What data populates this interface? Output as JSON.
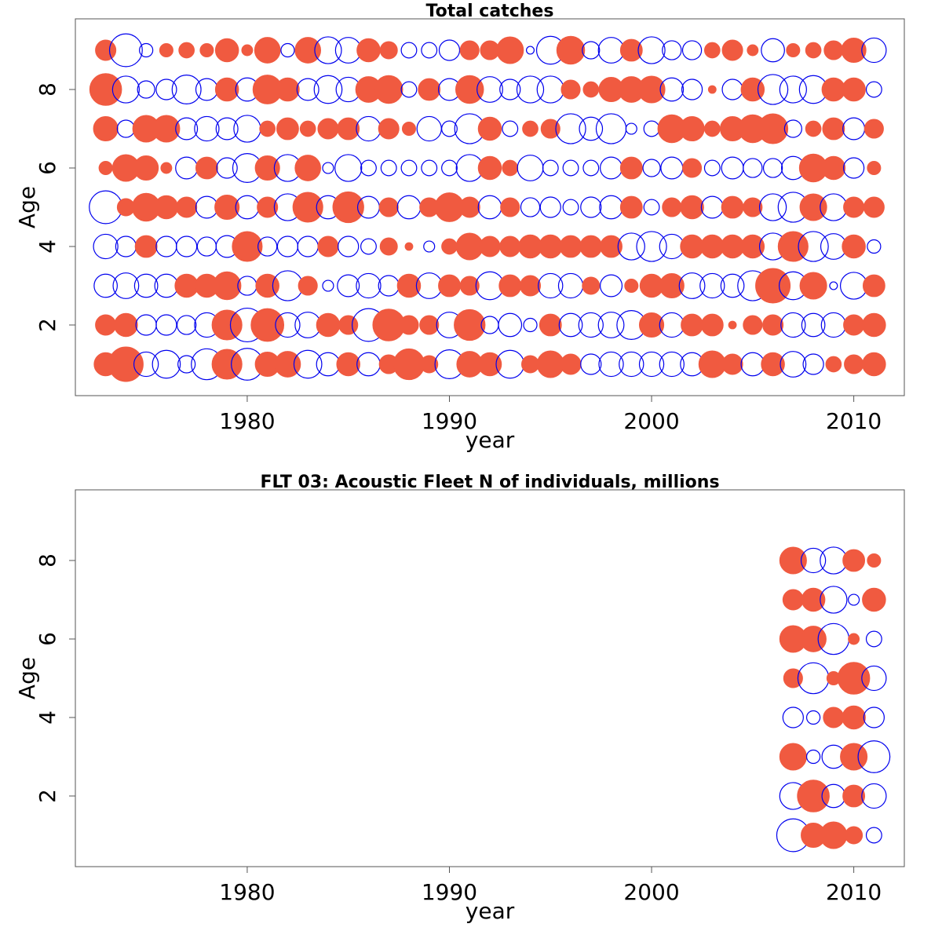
{
  "colors": {
    "positive": "#f05a40",
    "negative": "#0000ee",
    "frame": "#555555"
  },
  "chart_data": [
    {
      "type": "scatter",
      "title": "Total catches",
      "xlabel": "year",
      "ylabel": "Age",
      "xlim": [
        1971.5,
        2012.5
      ],
      "ylim": [
        0.2,
        9.8
      ],
      "xticks": [
        1980,
        1990,
        2000,
        2010
      ],
      "yticks": [
        2,
        4,
        6,
        8
      ],
      "grid": false,
      "years": [
        1973,
        1974,
        1975,
        1976,
        1977,
        1978,
        1979,
        1980,
        1981,
        1982,
        1983,
        1984,
        1985,
        1986,
        1987,
        1988,
        1989,
        1990,
        1991,
        1992,
        1993,
        1994,
        1995,
        1996,
        1997,
        1998,
        1999,
        2000,
        2001,
        2002,
        2003,
        2004,
        2005,
        2006,
        2007,
        2008,
        2009,
        2010,
        2011
      ],
      "ages": [
        1,
        2,
        3,
        4,
        5,
        6,
        7,
        8,
        9
      ],
      "residuals": {
        "1": [
          0.45,
          1.0,
          -0.5,
          -0.65,
          -0.25,
          -0.8,
          0.75,
          -0.85,
          0.5,
          0.55,
          -0.65,
          -0.45,
          0.45,
          -0.45,
          0.3,
          0.8,
          0.25,
          -0.7,
          0.55,
          0.45,
          -0.65,
          0.25,
          0.6,
          0.35,
          -0.35,
          -0.5,
          -0.5,
          -0.5,
          -0.5,
          -0.45,
          0.6,
          0.35,
          -0.45,
          0.45,
          -0.55,
          -0.35,
          0.2,
          0.3,
          0.45
        ],
        "2": [
          0.35,
          0.45,
          -0.35,
          -0.35,
          -0.3,
          -0.5,
          0.75,
          -0.95,
          0.9,
          -0.5,
          -0.55,
          0.45,
          0.3,
          -0.9,
          0.85,
          0.3,
          0.3,
          -0.55,
          0.8,
          -0.25,
          -0.45,
          -0.15,
          0.4,
          -0.45,
          -0.5,
          -0.55,
          -0.7,
          0.5,
          -0.5,
          0.4,
          0.4,
          0.05,
          0.3,
          0.35,
          -0.5,
          -0.45,
          -0.5,
          0.35,
          0.45
        ],
        "3": [
          -0.45,
          -0.55,
          -0.45,
          -0.45,
          0.45,
          0.45,
          0.65,
          -0.3,
          0.45,
          -0.75,
          0.3,
          -0.1,
          -0.4,
          -0.5,
          -0.35,
          0.45,
          -0.55,
          0.4,
          0.3,
          -0.65,
          0.4,
          0.35,
          -0.5,
          -0.5,
          0.25,
          -0.4,
          0.15,
          0.45,
          0.5,
          -0.55,
          -0.5,
          -0.45,
          -0.75,
          1.0,
          -0.65,
          0.6,
          -0.05,
          -0.6,
          0.4
        ],
        "4": [
          -0.5,
          -0.35,
          0.4,
          -0.35,
          -0.35,
          -0.3,
          -0.4,
          0.75,
          -0.3,
          -0.35,
          -0.35,
          0.35,
          -0.35,
          -0.2,
          0.25,
          0.05,
          -0.1,
          0.2,
          0.6,
          0.35,
          0.35,
          0.45,
          0.45,
          0.4,
          0.4,
          0.4,
          -0.6,
          -0.75,
          -0.5,
          0.45,
          0.45,
          0.45,
          0.45,
          -0.6,
          0.75,
          -0.75,
          -0.55,
          0.45,
          -0.15
        ],
        "5": [
          -0.9,
          0.25,
          0.65,
          0.45,
          0.35,
          -0.4,
          0.5,
          -0.45,
          0.35,
          -0.6,
          0.75,
          -0.45,
          0.8,
          -0.4,
          0.3,
          -0.45,
          0.3,
          0.7,
          0.35,
          -0.45,
          0.3,
          -0.3,
          -0.35,
          -0.2,
          -0.35,
          -0.45,
          0.4,
          -0.2,
          0.3,
          0.45,
          -0.4,
          0.4,
          0.3,
          -0.6,
          -0.75,
          0.6,
          -0.6,
          0.35,
          0.35
        ],
        "6": [
          0.15,
          0.6,
          0.5,
          0.1,
          -0.4,
          0.4,
          -0.35,
          -0.7,
          0.5,
          -0.6,
          0.55,
          -0.1,
          -0.6,
          -0.2,
          -0.2,
          -0.2,
          -0.2,
          -0.2,
          -0.6,
          0.45,
          0.2,
          -0.55,
          -0.2,
          -0.2,
          -0.2,
          -0.4,
          0.4,
          -0.25,
          -0.4,
          0.3,
          -0.2,
          -0.4,
          -0.3,
          -0.3,
          -0.45,
          0.65,
          0.45,
          -0.35,
          0.15
        ],
        "7": [
          0.5,
          -0.25,
          0.6,
          0.6,
          -0.4,
          -0.5,
          -0.4,
          -0.6,
          0.2,
          0.4,
          0.2,
          0.35,
          0.4,
          -0.5,
          0.35,
          0.15,
          -0.5,
          -0.2,
          -0.75,
          0.45,
          -0.2,
          0.2,
          0.3,
          -0.75,
          -0.45,
          -0.75,
          -0.1,
          -0.2,
          0.65,
          0.5,
          0.2,
          0.5,
          0.65,
          0.75,
          -0.25,
          0.2,
          0.4,
          -0.4,
          0.3
        ],
        "8": [
          0.85,
          -0.6,
          -0.25,
          -0.35,
          -0.7,
          -0.4,
          0.45,
          -0.45,
          0.7,
          0.45,
          -0.4,
          -0.65,
          -0.5,
          0.55,
          0.65,
          -0.2,
          0.4,
          -0.4,
          0.65,
          -0.55,
          -0.35,
          -0.6,
          -0.6,
          0.3,
          0.2,
          0.5,
          0.55,
          0.6,
          -0.45,
          -0.35,
          0.05,
          -0.35,
          0.45,
          -0.75,
          -0.6,
          -0.65,
          0.45,
          0.45,
          -0.2
        ],
        "9": [
          0.35,
          -0.9,
          -0.15,
          0.15,
          0.2,
          0.15,
          0.45,
          0.1,
          0.55,
          -0.15,
          0.55,
          -0.6,
          -0.55,
          0.45,
          0.25,
          -0.2,
          -0.2,
          -0.35,
          0.3,
          0.3,
          0.6,
          -0.05,
          -0.65,
          0.65,
          -0.25,
          -0.55,
          0.4,
          -0.6,
          -0.3,
          -0.3,
          0.2,
          0.35,
          0.1,
          -0.45,
          0.15,
          0.2,
          0.3,
          0.5,
          -0.5
        ]
      }
    },
    {
      "type": "scatter",
      "title": "FLT 03: Acoustic Fleet  N of individuals, millions",
      "xlabel": "year",
      "ylabel": "Age",
      "xlim": [
        1971.5,
        2012.5
      ],
      "ylim": [
        0.2,
        9.8
      ],
      "xticks": [
        1980,
        1990,
        2000,
        2010
      ],
      "yticks": [
        2,
        4,
        6,
        8
      ],
      "grid": false,
      "years": [
        2007,
        2008,
        2009,
        2010,
        2011
      ],
      "ages": [
        1,
        2,
        3,
        4,
        5,
        6,
        7,
        8
      ],
      "residuals": {
        "1": [
          -0.9,
          0.5,
          0.6,
          0.25,
          -0.2
        ],
        "2": [
          -0.6,
          0.85,
          -0.45,
          0.4,
          -0.5
        ],
        "3": [
          0.6,
          -0.15,
          -0.45,
          0.6,
          -0.85
        ],
        "4": [
          -0.35,
          -0.15,
          0.35,
          0.45,
          -0.35
        ],
        "5": [
          0.3,
          -0.8,
          0.15,
          0.85,
          -0.5
        ],
        "6": [
          0.6,
          0.55,
          -0.8,
          0.1,
          -0.2
        ],
        "7": [
          0.35,
          0.45,
          -0.6,
          -0.1,
          0.45
        ],
        "8": [
          0.6,
          -0.5,
          -0.6,
          0.4,
          0.15
        ]
      }
    }
  ]
}
